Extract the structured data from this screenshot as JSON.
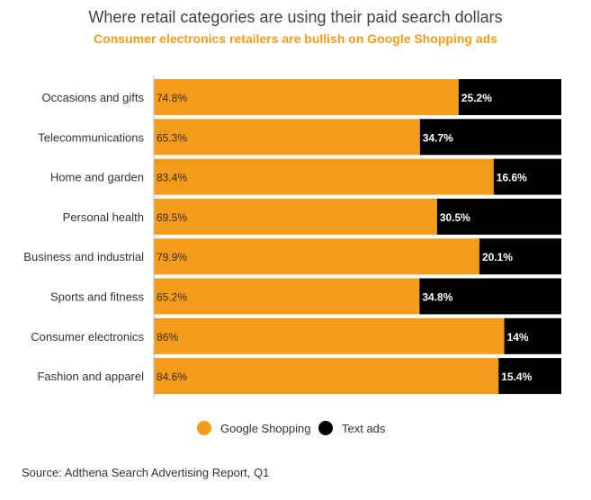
{
  "title": "Where retail categories are using their paid search dollars",
  "subtitle": "Consumer electronics retailers are bullish on Google Shopping ads",
  "source": "Source: Adthena Search Advertising Report, Q1",
  "colors": {
    "google_shopping": "#f39c1a",
    "text_ads": "#000000",
    "axis": "#bdbdbd",
    "category_label": "#333333"
  },
  "chart_data": {
    "type": "bar",
    "orientation": "horizontal",
    "stacked": true,
    "categories": [
      "Occasions and gifts",
      "Telecommunications",
      "Home and garden",
      "Personal health",
      "Business and industrial",
      "Sports and fitness",
      "Consumer electronics",
      "Fashion and apparel"
    ],
    "series": [
      {
        "name": "Google Shopping",
        "values": [
          74.8,
          65.3,
          83.4,
          69.5,
          79.9,
          65.2,
          86,
          84.6
        ],
        "labels": [
          "74.8%",
          "65.3%",
          "83.4%",
          "69.5%",
          "79.9%",
          "65.2%",
          "86%",
          "84.6%"
        ]
      },
      {
        "name": "Text ads",
        "values": [
          25.2,
          34.7,
          16.6,
          30.5,
          20.1,
          34.8,
          14,
          15.4
        ],
        "labels": [
          "25.2%",
          "34.7%",
          "16.6%",
          "30.5%",
          "20.1%",
          "34.8%",
          "14%",
          "15.4%"
        ]
      }
    ],
    "xlim": [
      0,
      100
    ],
    "grid": false,
    "legend_position": "bottom"
  }
}
